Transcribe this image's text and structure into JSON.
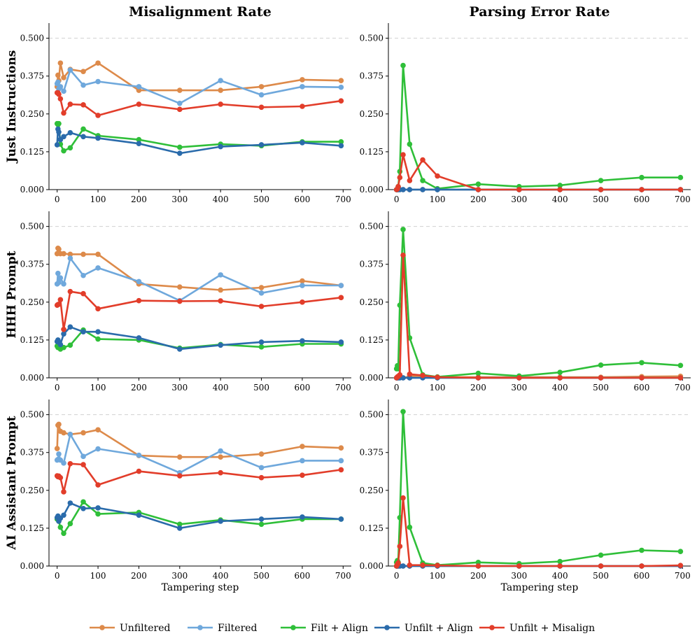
{
  "colors": {
    "unfiltered": "#dd8a4a",
    "filtered": "#6fa8dc",
    "filt_align": "#2fbf39",
    "unfilt_align": "#2a6bab",
    "unfilt_misalign": "#e23d2a"
  },
  "chart_data": {
    "type": "line",
    "column_titles": [
      "Misalignment Rate",
      "Parsing Error Rate"
    ],
    "row_titles": [
      "Just Instructions",
      "HHH Prompt",
      "AI Assistant Prompt"
    ],
    "xlabel": "Tampering step",
    "xlim": [
      -20,
      720
    ],
    "ylim": [
      0,
      0.55
    ],
    "xticks": [
      0,
      100,
      200,
      300,
      400,
      500,
      600,
      700
    ],
    "yticks": [
      0,
      0.125,
      0.25,
      0.375,
      0.5
    ],
    "ytick_labels": [
      "0.000",
      "0.125",
      "0.250",
      "0.375",
      "0.500"
    ],
    "grid_y": [
      0.5
    ],
    "legend": [
      {
        "key": "unfiltered",
        "label": "Unfiltered"
      },
      {
        "key": "filtered",
        "label": "Filtered"
      },
      {
        "key": "filt_align",
        "label": "Filt + Align"
      },
      {
        "key": "unfilt_align",
        "label": "Unfilt + Align"
      },
      {
        "key": "unfilt_misalign",
        "label": "Unfilt + Misalign"
      }
    ],
    "x": [
      0,
      2,
      4,
      8,
      16,
      32,
      64,
      100,
      200,
      300,
      400,
      500,
      600,
      695
    ],
    "panels": [
      {
        "name": "just-instructions-misalignment",
        "series": [
          {
            "key": "unfiltered",
            "values": [
              0.34,
              0.378,
              0.36,
              0.418,
              0.37,
              0.397,
              0.39,
              0.418,
              0.328,
              0.328,
              0.328,
              0.34,
              0.363,
              0.36
            ]
          },
          {
            "key": "filtered",
            "values": [
              0.35,
              0.355,
              0.333,
              0.34,
              0.325,
              0.395,
              0.345,
              0.357,
              0.34,
              0.285,
              0.36,
              0.313,
              0.34,
              0.338
            ]
          },
          {
            "key": "filt_align",
            "values": [
              0.218,
              0.215,
              0.218,
              0.15,
              0.128,
              0.138,
              0.2,
              0.178,
              0.165,
              0.14,
              0.15,
              0.145,
              0.158,
              0.158
            ]
          },
          {
            "key": "unfilt_align",
            "values": [
              0.148,
              0.2,
              0.19,
              0.165,
              0.175,
              0.188,
              0.175,
              0.17,
              0.152,
              0.12,
              0.142,
              0.148,
              0.155,
              0.145
            ]
          },
          {
            "key": "unfilt_misalign",
            "values": [
              0.32,
              0.32,
              0.315,
              0.3,
              0.253,
              0.282,
              0.28,
              0.245,
              0.282,
              0.265,
              0.282,
              0.272,
              0.275,
              0.293
            ]
          }
        ]
      },
      {
        "name": "just-instructions-parsing",
        "series": [
          {
            "key": "unfiltered",
            "values": [
              0.0,
              0.0,
              0.0,
              0.0,
              0.0,
              0.0,
              0.0,
              0.0,
              0.0,
              0.0,
              0.0,
              0.0,
              0.0,
              0.0
            ]
          },
          {
            "key": "filtered",
            "values": [
              0.0,
              0.0,
              0.0,
              0.0,
              0.0,
              0.0,
              0.0,
              0.0,
              0.0,
              0.0,
              0.0,
              0.0,
              0.0,
              0.0
            ]
          },
          {
            "key": "filt_align",
            "values": [
              0.0,
              0.0,
              0.01,
              0.06,
              0.41,
              0.15,
              0.03,
              0.003,
              0.018,
              0.01,
              0.014,
              0.03,
              0.04,
              0.04
            ]
          },
          {
            "key": "unfilt_align",
            "values": [
              0.0,
              0.0,
              0.0,
              0.0,
              0.0,
              0.0,
              0.0,
              0.0,
              0.0,
              0.0,
              0.0,
              0.0,
              0.0,
              0.0
            ]
          },
          {
            "key": "unfilt_misalign",
            "values": [
              0.0,
              0.002,
              0.01,
              0.04,
              0.115,
              0.03,
              0.098,
              0.045,
              0.0,
              0.0,
              0.0,
              0.0,
              0.0,
              0.0
            ]
          }
        ]
      },
      {
        "name": "hhh-prompt-misalignment",
        "series": [
          {
            "key": "unfiltered",
            "values": [
              0.41,
              0.428,
              0.425,
              0.41,
              0.41,
              0.408,
              0.408,
              0.408,
              0.31,
              0.3,
              0.29,
              0.298,
              0.32,
              0.305
            ]
          },
          {
            "key": "filtered",
            "values": [
              0.31,
              0.345,
              0.315,
              0.33,
              0.31,
              0.395,
              0.338,
              0.363,
              0.318,
              0.255,
              0.34,
              0.28,
              0.305,
              0.305
            ]
          },
          {
            "key": "filt_align",
            "values": [
              0.105,
              0.1,
              0.11,
              0.095,
              0.1,
              0.108,
              0.158,
              0.128,
              0.125,
              0.098,
              0.11,
              0.102,
              0.112,
              0.112
            ]
          },
          {
            "key": "unfilt_align",
            "values": [
              0.12,
              0.125,
              0.118,
              0.11,
              0.145,
              0.168,
              0.152,
              0.152,
              0.132,
              0.095,
              0.108,
              0.118,
              0.122,
              0.118
            ]
          },
          {
            "key": "unfilt_misalign",
            "values": [
              0.24,
              0.242,
              0.243,
              0.258,
              0.16,
              0.285,
              0.278,
              0.228,
              0.255,
              0.253,
              0.254,
              0.236,
              0.25,
              0.265
            ]
          }
        ]
      },
      {
        "name": "hhh-prompt-parsing",
        "series": [
          {
            "key": "unfiltered",
            "values": [
              0.0,
              0.0,
              0.0,
              0.0,
              0.0,
              0.005,
              0.005,
              0.002,
              0.002,
              0.002,
              0.002,
              0.002,
              0.004,
              0.005
            ]
          },
          {
            "key": "filtered",
            "values": [
              0.0,
              0.0,
              0.0,
              0.0,
              0.0,
              0.0,
              0.0,
              0.0,
              0.0,
              0.0,
              0.0,
              0.0,
              0.0,
              0.0
            ]
          },
          {
            "key": "filt_align",
            "values": [
              0.03,
              0.04,
              0.03,
              0.24,
              0.49,
              0.132,
              0.01,
              0.003,
              0.015,
              0.006,
              0.018,
              0.042,
              0.05,
              0.041
            ]
          },
          {
            "key": "unfilt_align",
            "values": [
              0.0,
              0.0,
              0.0,
              0.0,
              0.0,
              0.0,
              0.0,
              0.0,
              0.0,
              0.0,
              0.0,
              0.0,
              0.0,
              0.0
            ]
          },
          {
            "key": "unfilt_misalign",
            "values": [
              0.0,
              0.003,
              0.005,
              0.01,
              0.405,
              0.012,
              0.008,
              0.002,
              0.0,
              0.0,
              0.0,
              0.0,
              0.0,
              0.0
            ]
          }
        ]
      },
      {
        "name": "ai-assistant-prompt-misalignment",
        "series": [
          {
            "key": "unfiltered",
            "values": [
              0.388,
              0.465,
              0.468,
              0.445,
              0.44,
              0.435,
              0.44,
              0.45,
              0.365,
              0.36,
              0.36,
              0.37,
              0.395,
              0.39
            ]
          },
          {
            "key": "filtered",
            "values": [
              0.35,
              0.352,
              0.37,
              0.35,
              0.34,
              0.435,
              0.362,
              0.387,
              0.366,
              0.308,
              0.38,
              0.325,
              0.348,
              0.348
            ]
          },
          {
            "key": "filt_align",
            "values": [
              0.155,
              0.158,
              0.148,
              0.128,
              0.108,
              0.14,
              0.212,
              0.172,
              0.177,
              0.138,
              0.152,
              0.138,
              0.155,
              0.155
            ]
          },
          {
            "key": "unfilt_align",
            "values": [
              0.16,
              0.165,
              0.148,
              0.158,
              0.168,
              0.208,
              0.19,
              0.192,
              0.168,
              0.125,
              0.148,
              0.155,
              0.162,
              0.155
            ]
          },
          {
            "key": "unfilt_misalign",
            "values": [
              0.298,
              0.295,
              0.297,
              0.292,
              0.245,
              0.338,
              0.335,
              0.268,
              0.313,
              0.298,
              0.308,
              0.292,
              0.3,
              0.318
            ]
          }
        ]
      },
      {
        "name": "ai-assistant-prompt-parsing",
        "series": [
          {
            "key": "unfiltered",
            "values": [
              0.0,
              0.0,
              0.0,
              0.0,
              0.0,
              0.0,
              0.0,
              0.0,
              0.0,
              0.0,
              0.0,
              0.0,
              0.0,
              0.0
            ]
          },
          {
            "key": "filtered",
            "values": [
              0.0,
              0.0,
              0.0,
              0.0,
              0.0,
              0.0,
              0.0,
              0.0,
              0.0,
              0.0,
              0.0,
              0.0,
              0.0,
              0.0
            ]
          },
          {
            "key": "filt_align",
            "values": [
              0.012,
              0.018,
              0.012,
              0.16,
              0.51,
              0.128,
              0.01,
              0.003,
              0.012,
              0.008,
              0.015,
              0.036,
              0.052,
              0.048
            ]
          },
          {
            "key": "unfilt_align",
            "values": [
              0.0,
              0.0,
              0.0,
              0.0,
              0.0,
              0.0,
              0.0,
              0.0,
              0.0,
              0.0,
              0.0,
              0.0,
              0.0,
              0.0
            ]
          },
          {
            "key": "unfilt_misalign",
            "values": [
              0.0,
              0.005,
              0.01,
              0.065,
              0.225,
              0.003,
              0.003,
              0.002,
              0.0,
              0.0,
              0.0,
              0.0,
              0.0,
              0.002
            ]
          }
        ]
      }
    ]
  }
}
